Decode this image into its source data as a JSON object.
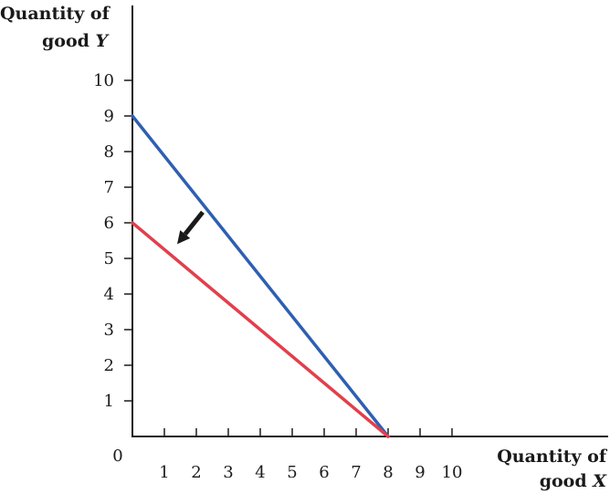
{
  "chart_data": {
    "type": "line",
    "title": "",
    "ylabel_line1": "Quantity of",
    "ylabel_line2_text": "good ",
    "ylabel_line2_var": "Y",
    "xlabel_line1": "Quantity of",
    "xlabel_line2_text": "good ",
    "xlabel_line2_var": "X",
    "origin_label": "0",
    "xlim": [
      0,
      10
    ],
    "ylim": [
      0,
      10
    ],
    "x_ticks": [
      "1",
      "2",
      "3",
      "4",
      "5",
      "6",
      "7",
      "8",
      "9",
      "10"
    ],
    "y_ticks": [
      "1",
      "2",
      "3",
      "4",
      "5",
      "6",
      "7",
      "8",
      "9",
      "10"
    ],
    "grid": false,
    "series": [
      {
        "x": [
          0,
          8
        ],
        "y": [
          9,
          0
        ],
        "color": "#2f5fb0"
      },
      {
        "x": [
          0,
          8
        ],
        "y": [
          6,
          0
        ],
        "color": "#e0404c"
      }
    ],
    "annotations": [
      {
        "type": "arrow",
        "from": [
          2.2,
          6.3
        ],
        "to": [
          1.4,
          5.4
        ],
        "color": "#1a1a1a"
      }
    ]
  }
}
